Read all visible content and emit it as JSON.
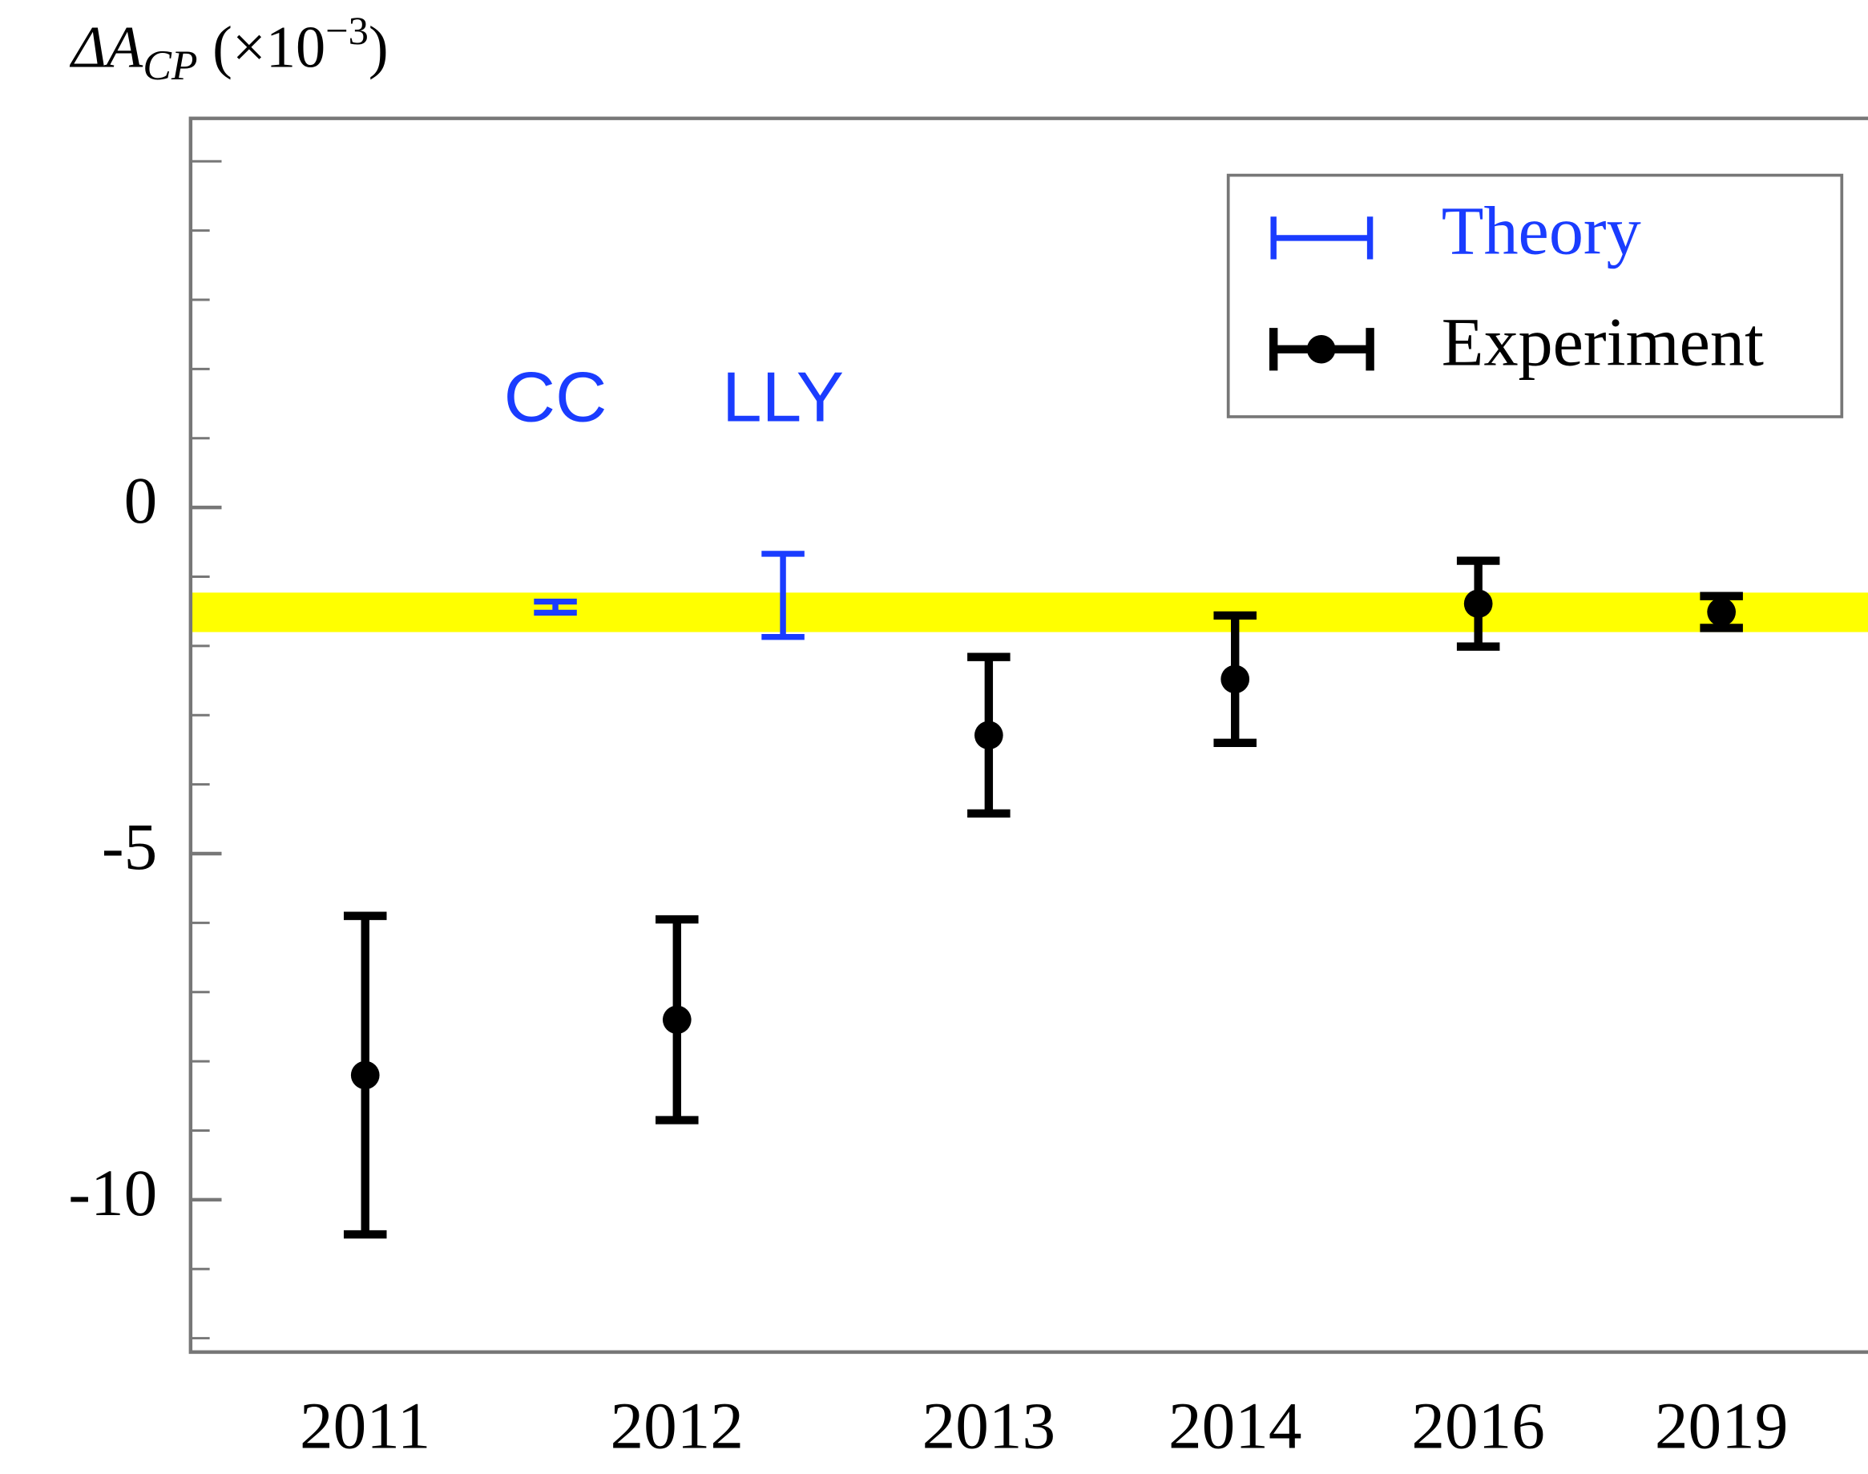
{
  "chart_data": {
    "type": "errorbar",
    "ylabel_parts": [
      "ΔA",
      "CP",
      " (×10",
      "−3",
      ")"
    ],
    "xlim": [
      0.44,
      5.82
    ],
    "ylim": [
      -12.2,
      5.62
    ],
    "xticks": [
      {
        "value": 1,
        "label": "2011"
      },
      {
        "value": 2,
        "label": "2012"
      },
      {
        "value": 3,
        "label": "2013"
      },
      {
        "value": 3.79,
        "label": "2014"
      },
      {
        "value": 4.57,
        "label": "2016"
      },
      {
        "value": 5.35,
        "label": "2019"
      }
    ],
    "yticks": [
      -10,
      -5,
      0
    ],
    "minor_yticks": [
      -12,
      -11,
      -9,
      -8,
      -7,
      -6,
      -4,
      -3,
      -2,
      -1,
      1,
      2,
      3,
      4,
      5
    ],
    "band": [
      -1.8,
      -1.23
    ],
    "band_color": "#ffff00",
    "legend": "upper right",
    "series": [
      {
        "name": "Theory",
        "color": "#1a3cff",
        "marker": false,
        "x": [
          1.61,
          2.34
        ],
        "values": [
          -1.44,
          -1.27
        ],
        "errors": [
          0.08,
          0.6
        ],
        "labels": [
          "CC",
          "LLY"
        ]
      },
      {
        "name": "Experiment",
        "color": "#000000",
        "marker": true,
        "x": [
          1,
          2,
          3,
          3.79,
          4.57,
          5.35
        ],
        "values": [
          -8.2,
          -7.4,
          -3.29,
          -2.48,
          -1.39,
          -1.51
        ],
        "errors": [
          2.3,
          1.45,
          1.13,
          0.92,
          0.62,
          0.23
        ]
      }
    ]
  }
}
